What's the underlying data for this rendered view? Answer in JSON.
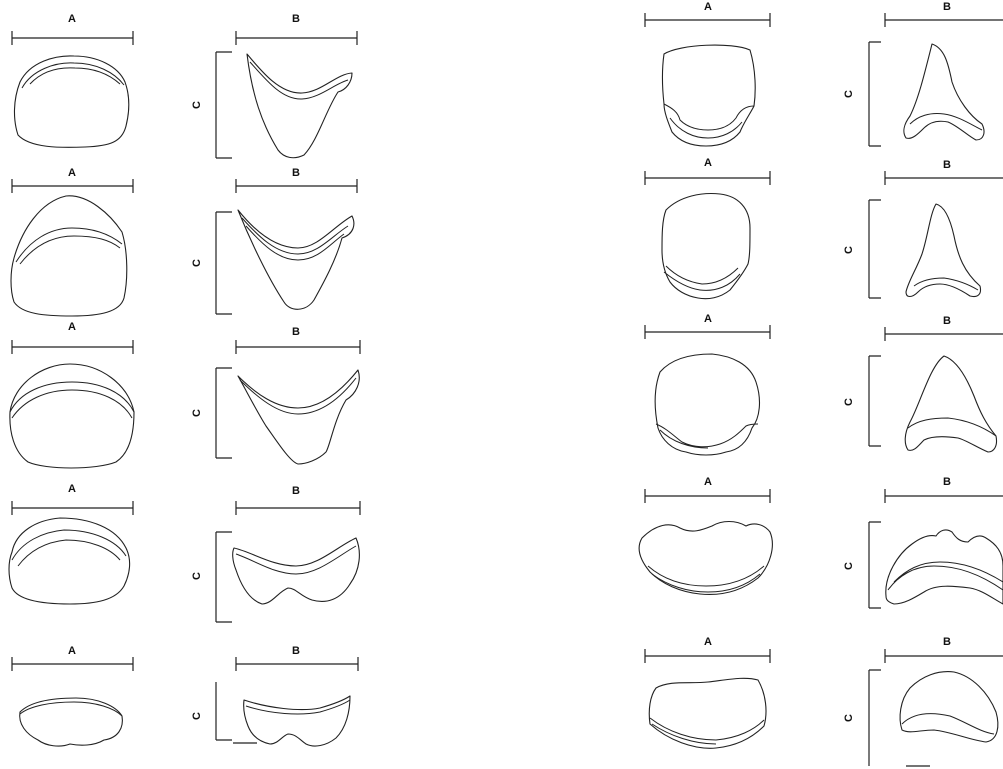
{
  "labels": {
    "a": "A",
    "b": "B",
    "c": "C"
  },
  "left_column": [
    {
      "id": "L1",
      "a": "A",
      "b": "B",
      "c": "C"
    },
    {
      "id": "L2",
      "a": "A",
      "b": "B",
      "c": "C"
    },
    {
      "id": "L3",
      "a": "A",
      "b": "B",
      "c": "C"
    },
    {
      "id": "L4",
      "a": "A",
      "b": "B",
      "c": "C"
    },
    {
      "id": "L5",
      "a": "A",
      "b": "B",
      "c": "C"
    }
  ],
  "right_column": [
    {
      "id": "R1",
      "a": "A",
      "b": "B",
      "c": "C"
    },
    {
      "id": "R2",
      "a": "A",
      "b": "B",
      "c": "C"
    },
    {
      "id": "R3",
      "a": "A",
      "b": "B",
      "c": "C"
    },
    {
      "id": "R4",
      "a": "A",
      "b": "B",
      "c": "C"
    },
    {
      "id": "R5",
      "a": "A",
      "b": "B",
      "c": "C"
    }
  ]
}
